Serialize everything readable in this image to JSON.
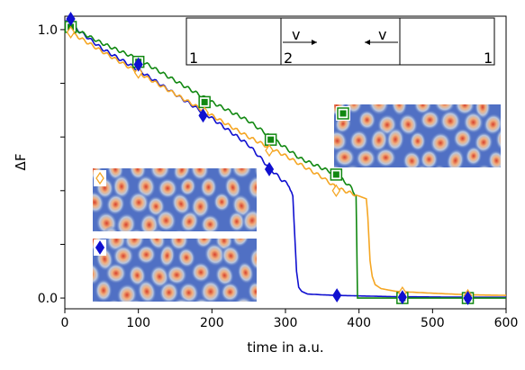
{
  "chart_data": {
    "type": "line",
    "title": "",
    "xlabel": "time in a.u.",
    "ylabel": "ΔF",
    "xlim": [
      0,
      600
    ],
    "ylim": [
      -0.04,
      1.05
    ],
    "xticks": [
      0,
      100,
      200,
      300,
      400,
      500,
      600
    ],
    "xtick_labels": [
      "0",
      "100",
      "200",
      "300",
      "400",
      "500",
      "600"
    ],
    "yticks": [
      0.0,
      0.2,
      0.4,
      0.6,
      0.8,
      1.0
    ],
    "ytick_labels": [
      "0.0",
      "",
      "",
      "",
      "",
      "1.0"
    ],
    "grid": false,
    "series": [
      {
        "color": "#1010d0",
        "marker": "diamond-filled",
        "x": [
          0,
          8,
          50,
          100,
          150,
          200,
          250,
          280,
          295,
          300,
          305,
          310,
          315,
          318,
          322,
          330,
          350,
          370,
          400,
          450,
          500,
          550,
          600
        ],
        "y": [
          1.03,
          1.02,
          0.93,
          0.85,
          0.76,
          0.67,
          0.57,
          0.48,
          0.44,
          0.43,
          0.42,
          0.38,
          0.1,
          0.04,
          0.025,
          0.015,
          0.012,
          0.01,
          0.008,
          0.005,
          0.004,
          0.003,
          0.003
        ],
        "markers_x": [
          8,
          100,
          188,
          278,
          370,
          459,
          548
        ],
        "markers_y": [
          1.04,
          0.87,
          0.68,
          0.48,
          0.01,
          0.003,
          0.0
        ]
      },
      {
        "color": "#118811",
        "marker": "square-filled",
        "x": [
          0,
          8,
          50,
          100,
          150,
          200,
          250,
          280,
          320,
          370,
          390,
          396,
          397,
          398,
          400,
          450,
          500,
          550,
          600
        ],
        "y": [
          1.02,
          1.01,
          0.95,
          0.89,
          0.81,
          0.73,
          0.66,
          0.6,
          0.52,
          0.46,
          0.41,
          0.38,
          0.2,
          0.0,
          0.0,
          0.0,
          0.0,
          0.0,
          0.0
        ],
        "markers_x": [
          8,
          100,
          190,
          280,
          369,
          459,
          548
        ],
        "markers_y": [
          1.01,
          0.88,
          0.73,
          0.59,
          0.46,
          0.0,
          0.0
        ]
      },
      {
        "color": "#f5a623",
        "marker": "diamond-open",
        "x": [
          0,
          8,
          50,
          100,
          150,
          200,
          250,
          300,
          350,
          370,
          400,
          410,
          412,
          415,
          418,
          422,
          430,
          450,
          500,
          550,
          600
        ],
        "y": [
          1.0,
          0.99,
          0.92,
          0.84,
          0.76,
          0.68,
          0.6,
          0.53,
          0.45,
          0.41,
          0.38,
          0.37,
          0.3,
          0.14,
          0.08,
          0.05,
          0.035,
          0.025,
          0.018,
          0.012,
          0.01
        ],
        "markers_x": [
          8,
          100,
          190,
          278,
          369,
          459,
          548
        ],
        "markers_y": [
          0.99,
          0.84,
          0.69,
          0.55,
          0.4,
          0.02,
          0.01
        ]
      }
    ],
    "inset": {
      "labels": [
        "1",
        "2",
        "v",
        "v",
        "1"
      ]
    }
  }
}
